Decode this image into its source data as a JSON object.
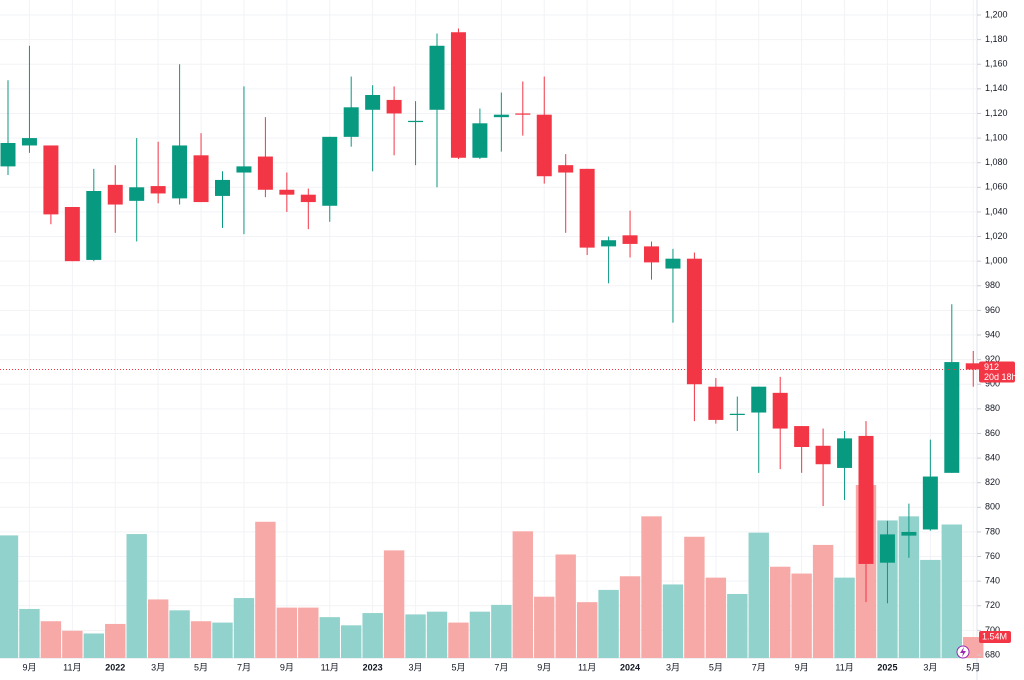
{
  "chart_data": {
    "type": "candlestick",
    "categories": [
      null,
      "9月",
      null,
      "11月",
      null,
      "2022",
      null,
      "3月",
      null,
      "5月",
      null,
      "7月",
      null,
      "9月",
      null,
      "11月",
      null,
      "2023",
      null,
      "3月",
      null,
      "5月",
      null,
      "7月",
      null,
      "9月",
      null,
      "11月",
      null,
      "2024",
      null,
      "3月",
      null,
      "5月",
      null,
      "7月",
      null,
      "9月",
      null,
      "11月",
      null,
      "2025",
      null,
      "3月",
      null,
      "5月"
    ],
    "open": [
      1077,
      1094,
      1094,
      1044,
      1001,
      1062,
      1049,
      1061,
      1051,
      1086,
      1053,
      1072,
      1085,
      1058,
      1054,
      1045,
      1101,
      1123,
      1131,
      1113,
      1123,
      1186,
      1084,
      1117,
      1120,
      1119,
      1078,
      1075,
      1012,
      1021,
      1012,
      994,
      1002,
      898,
      875,
      877,
      893,
      866,
      850,
      832,
      858,
      755,
      777,
      782,
      828,
      917
    ],
    "high": [
      1147,
      1175,
      1094,
      1044,
      1075,
      1078,
      1100,
      1097,
      1160,
      1104,
      1073,
      1142,
      1117,
      1072,
      1059,
      1101,
      1150,
      1143,
      1142,
      1130,
      1185,
      1189,
      1124,
      1137,
      1146,
      1150,
      1087,
      1075,
      1020,
      1041,
      1016,
      1010,
      1007,
      905,
      890,
      898,
      906,
      866,
      864,
      862,
      870,
      789,
      803,
      855,
      965,
      927
    ],
    "low": [
      1070,
      1088,
      1030,
      1000,
      1000,
      1023,
      1016,
      1047,
      1046,
      1048,
      1027,
      1022,
      1052,
      1040,
      1026,
      1032,
      1093,
      1073,
      1086,
      1078,
      1060,
      1083,
      1083,
      1089,
      1102,
      1063,
      1023,
      1005,
      982,
      1003,
      985,
      950,
      870,
      868,
      862,
      828,
      831,
      828,
      801,
      806,
      723,
      722,
      759,
      781,
      828,
      898
    ],
    "close": [
      1096,
      1100,
      1038,
      1000,
      1057,
      1046,
      1060,
      1055,
      1094,
      1048,
      1066,
      1077,
      1058,
      1054,
      1048,
      1101,
      1125,
      1135,
      1120,
      1114,
      1175,
      1084,
      1112,
      1119,
      1119,
      1069,
      1072,
      1011,
      1017,
      1014,
      999,
      1002,
      900,
      871,
      876,
      898,
      864,
      849,
      835,
      856,
      754,
      778,
      780,
      825,
      918,
      912
    ],
    "volume": [
      9.0,
      3.6,
      2.7,
      2.0,
      1.8,
      2.5,
      9.1,
      4.3,
      3.5,
      2.7,
      2.6,
      4.4,
      10.0,
      3.7,
      3.7,
      3.0,
      2.4,
      3.3,
      7.9,
      3.2,
      3.4,
      2.6,
      3.4,
      3.9,
      9.3,
      4.5,
      7.6,
      4.1,
      5.0,
      6.0,
      10.4,
      5.4,
      8.9,
      5.9,
      4.7,
      9.2,
      6.7,
      6.2,
      8.3,
      5.9,
      12.7,
      10.1,
      10.4,
      7.2,
      9.8,
      1.54
    ],
    "volume_label": "1.54M",
    "up_color": "#089981",
    "down_color": "#f23645",
    "up_volume_color": "#92d2cc",
    "down_volume_color": "#f7a9a7",
    "last_price": 912,
    "countdown": "20d 18h",
    "ylim": [
      680,
      1200
    ],
    "yticks": [
      680,
      700,
      720,
      740,
      760,
      780,
      800,
      820,
      840,
      860,
      880,
      900,
      920,
      940,
      960,
      980,
      {
        "value": 1000,
        "label": "1,000"
      },
      {
        "value": 1020,
        "label": "1,020"
      },
      {
        "value": 1040,
        "label": "1,040"
      },
      {
        "value": 1060,
        "label": "1,060"
      },
      {
        "value": 1080,
        "label": "1,080"
      },
      {
        "value": 1100,
        "label": "1,100"
      },
      {
        "value": 1120,
        "label": "1,120"
      },
      {
        "value": 1140,
        "label": "1,140"
      },
      {
        "value": 1160,
        "label": "1,160"
      },
      {
        "value": 1180,
        "label": "1,180"
      },
      {
        "value": 1200,
        "label": "1,200"
      }
    ],
    "grid": true
  }
}
